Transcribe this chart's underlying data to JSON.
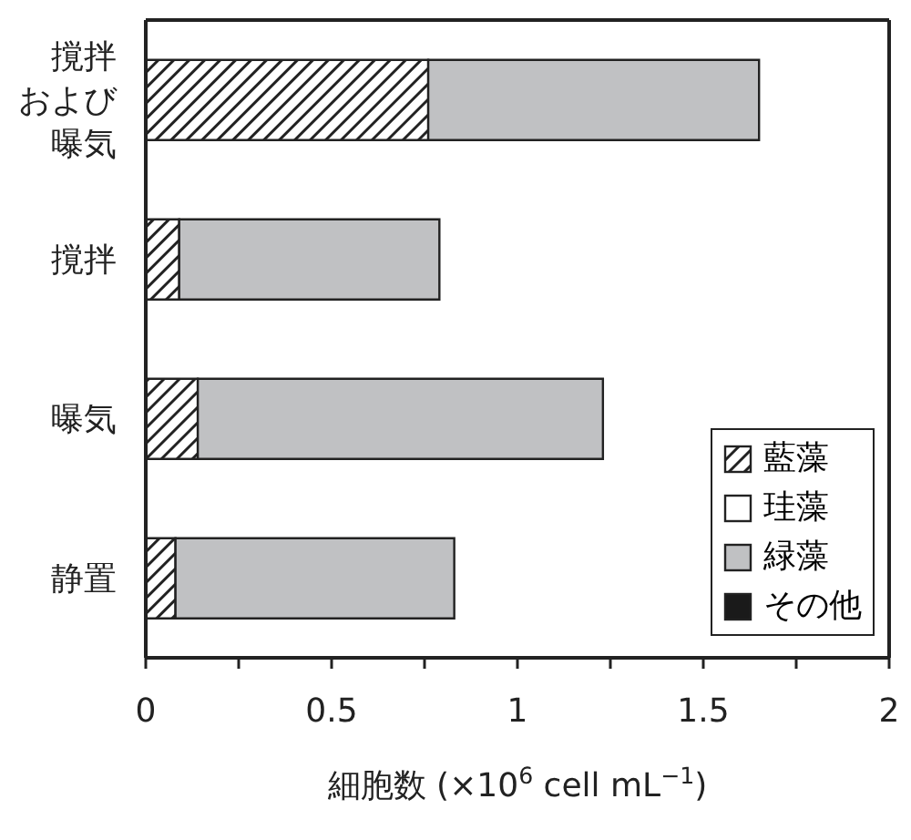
{
  "chart_data": {
    "type": "bar",
    "orientation": "horizontal",
    "stacked": true,
    "xlabel": "細胞数 (×10$^{6}$ cell mL$^{−1}$)",
    "categories": [
      "撹拌および曝気",
      "撹拌",
      "曝気",
      "静置"
    ],
    "series": [
      {
        "name": "藍藻",
        "color": "#222222",
        "values": [
          0.76,
          0.09,
          0.14,
          0.08
        ]
      },
      {
        "name": "珪藻",
        "color": "#ffffff",
        "values": [
          0,
          0,
          0,
          0
        ]
      },
      {
        "name": "緑藻",
        "color": "#c0c1c3",
        "values": [
          0.89,
          0.7,
          1.09,
          0.75
        ]
      },
      {
        "name": "その他",
        "color": "#1a1a1a",
        "values": [
          0,
          0,
          0,
          0
        ]
      }
    ],
    "xlim": [
      0,
      2
    ],
    "xticks": [
      0,
      {
        "value": 0.25,
        "label": null
      },
      0.5,
      {
        "value": 0.75,
        "label": null
      },
      1,
      {
        "value": 1.25,
        "label": null
      },
      1.5,
      {
        "value": 1.75,
        "label": null
      },
      2
    ],
    "legend": "bottom right",
    "grid": false
  }
}
